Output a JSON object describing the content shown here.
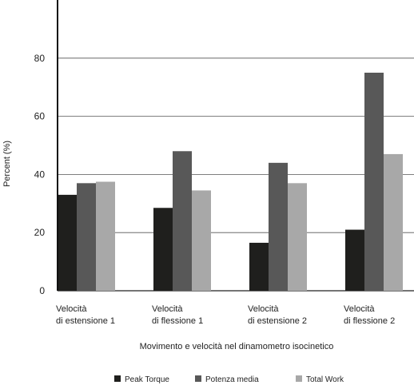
{
  "chart_data": {
    "type": "bar",
    "title": "",
    "xlabel": "Movimento e velocità nel dinamometro isocinetico",
    "ylabel": "Percent (%)",
    "ylim": [
      0,
      100
    ],
    "yticks": [
      0,
      20,
      40,
      60,
      80
    ],
    "grid": true,
    "legend_position": "bottom",
    "categories": [
      [
        "Velocità",
        "di estensione 1"
      ],
      [
        "Velocità",
        "di flessione 1"
      ],
      [
        "Velocità",
        "di estensione 2"
      ],
      [
        "Velocità",
        "di flessione 2"
      ]
    ],
    "series": [
      {
        "name": "Peak Torque",
        "color": "#1f1f1d",
        "values": [
          33,
          28.5,
          16.5,
          21
        ]
      },
      {
        "name": "Potenza media",
        "color": "#585858",
        "values": [
          37,
          48,
          44,
          75
        ]
      },
      {
        "name": "Total Work",
        "color": "#a8a8a8",
        "values": [
          37.5,
          34.5,
          37,
          47
        ]
      }
    ]
  }
}
